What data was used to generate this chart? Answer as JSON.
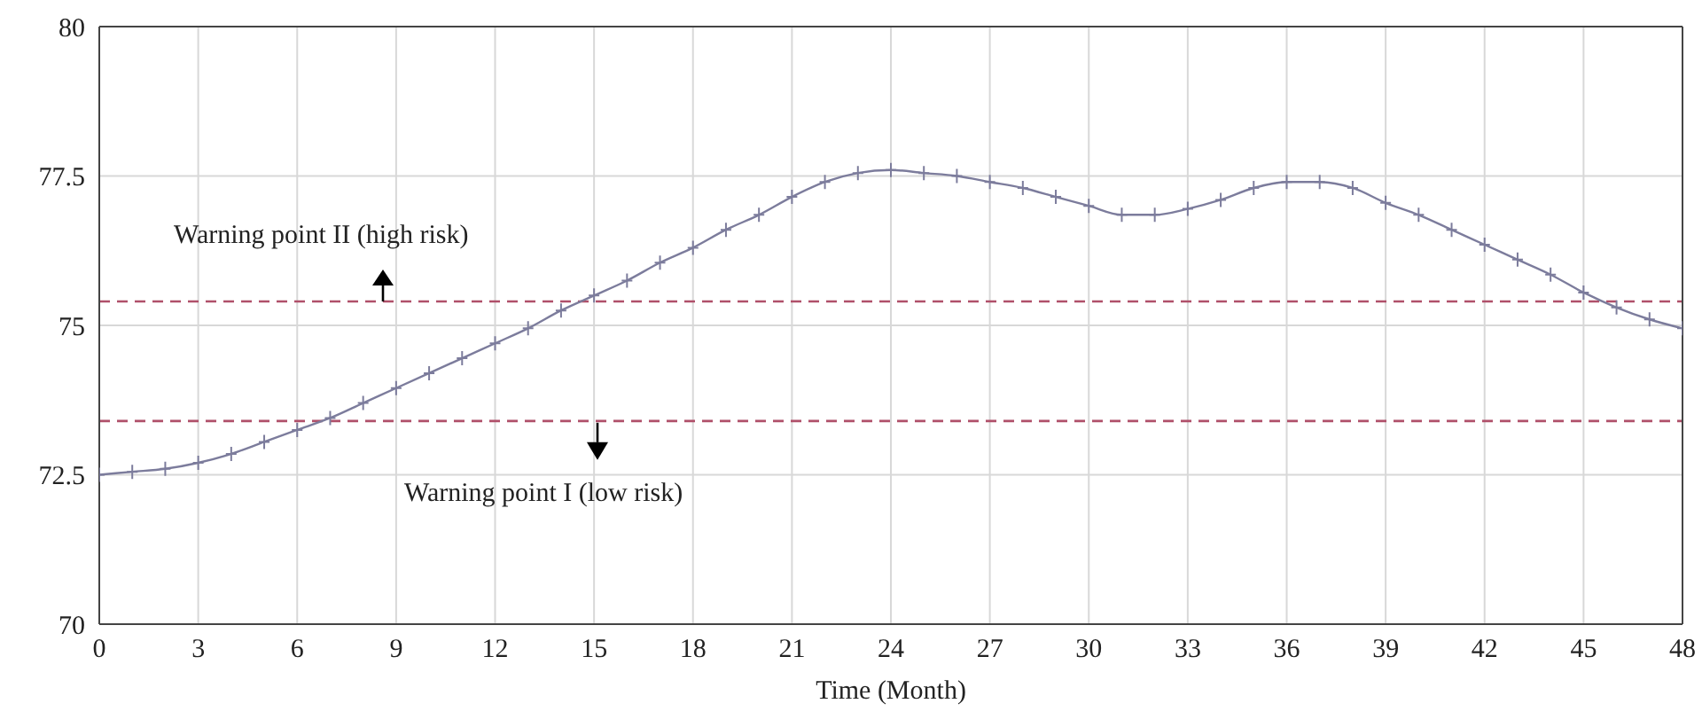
{
  "chart_data": {
    "type": "line",
    "xlabel": "Time (Month)",
    "x": [
      0,
      1,
      2,
      3,
      4,
      5,
      6,
      7,
      8,
      9,
      10,
      11,
      12,
      13,
      14,
      15,
      16,
      17,
      18,
      19,
      20,
      21,
      22,
      23,
      24,
      25,
      26,
      27,
      28,
      29,
      30,
      31,
      32,
      33,
      34,
      35,
      36,
      37,
      38,
      39,
      40,
      41,
      42,
      43,
      44,
      45,
      46,
      47,
      48
    ],
    "series": [
      {
        "color": "#7c7c9c",
        "values": [
          72.5,
          72.55,
          72.6,
          72.7,
          72.85,
          73.05,
          73.25,
          73.45,
          73.7,
          73.95,
          74.2,
          74.45,
          74.7,
          74.95,
          75.25,
          75.5,
          75.75,
          76.05,
          76.3,
          76.6,
          76.85,
          77.15,
          77.4,
          77.55,
          77.6,
          77.55,
          77.5,
          77.4,
          77.3,
          77.15,
          77.0,
          76.85,
          76.85,
          76.95,
          77.1,
          77.3,
          77.4,
          77.4,
          77.3,
          77.05,
          76.85,
          76.6,
          76.35,
          76.1,
          75.85,
          75.55,
          75.3,
          75.1,
          74.95
        ]
      }
    ],
    "xlim": [
      0,
      48
    ],
    "xticks": [
      0,
      3,
      6,
      9,
      12,
      15,
      18,
      21,
      24,
      27,
      30,
      33,
      36,
      39,
      42,
      45,
      48
    ],
    "ylim": [
      70,
      80
    ],
    "yticks": [
      70,
      72.5,
      75,
      77.5,
      80
    ],
    "ref_lines": [
      {
        "axis": "y",
        "value": 75.4,
        "label": "Warning point II (high risk)",
        "color": "#b0506a",
        "line_style": "dashed"
      },
      {
        "axis": "y",
        "value": 73.4,
        "label": "Warning point I (low risk)",
        "color": "#b0506a",
        "line_style": "dashed"
      }
    ],
    "grid": true,
    "marker": "cross",
    "line_style": "solid"
  }
}
